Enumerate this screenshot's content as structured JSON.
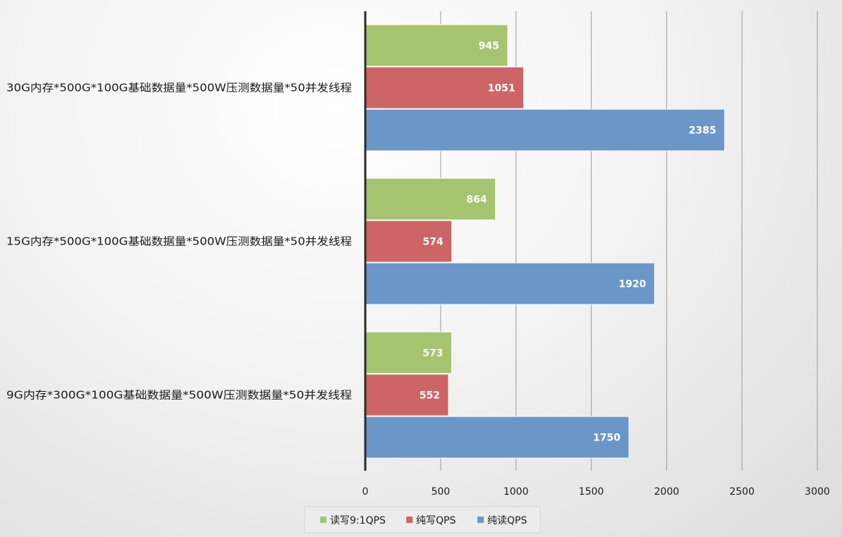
{
  "chart_data": {
    "type": "bar",
    "orientation": "horizontal",
    "categories": [
      "30G内存*500G*100G基础数据量*500W压测数据量*50并发线程",
      "15G内存*500G*100G基础数据量*500W压测数据量*50并发线程",
      "9G内存*300G*100G基础数据量*500W压测数据量*50并发线程"
    ],
    "series": [
      {
        "name": "读写9:1QPS",
        "color": "#a5c46f",
        "values": [
          945,
          864,
          573
        ]
      },
      {
        "name": "纯写QPS",
        "color": "#cd6566",
        "values": [
          1051,
          574,
          552
        ]
      },
      {
        "name": "纯读QPS",
        "color": "#6b97c8",
        "values": [
          2385,
          1920,
          1750
        ]
      }
    ],
    "xlim": [
      0,
      3000
    ],
    "xticks": [
      "0",
      "500",
      "1000",
      "1500",
      "2000",
      "2500",
      "3000"
    ],
    "grid": true,
    "legend_position": "bottom"
  }
}
